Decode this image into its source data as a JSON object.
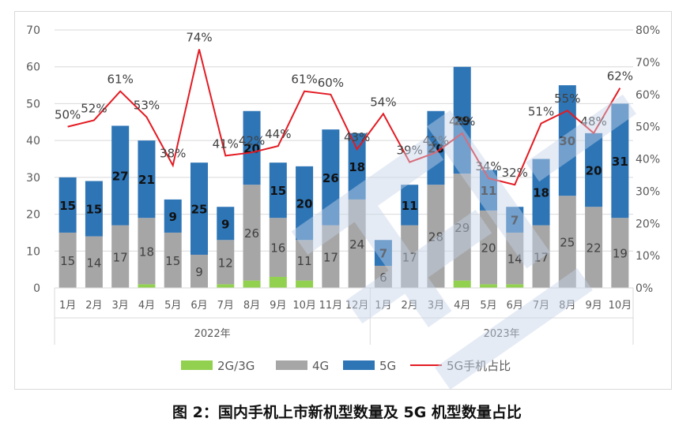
{
  "caption": "图 2：国内手机上市新机型数量及 5G 机型数量占比",
  "colors": {
    "g23": "#92d050",
    "g4": "#a6a6a6",
    "g5": "#2e75b6",
    "ratio": "#e31b23",
    "grid": "#d9d9d9",
    "axis_text": "#595959",
    "watermark": "#c7d5ea"
  },
  "chart_data": {
    "type": "bar",
    "stacked": true,
    "grid": true,
    "legend_position": "bottom",
    "categories": [
      "1月",
      "2月",
      "3月",
      "4月",
      "5月",
      "6月",
      "7月",
      "8月",
      "9月",
      "10月",
      "11月",
      "12月",
      "1月",
      "2月",
      "3月",
      "4月",
      "5月",
      "6月",
      "7月",
      "8月",
      "9月",
      "10月"
    ],
    "year_groups": [
      {
        "label": "2022年",
        "count": 12
      },
      {
        "label": "2023年",
        "count": 10
      }
    ],
    "ylim": [
      0,
      70
    ],
    "yticks": [
      0,
      10,
      20,
      30,
      40,
      50,
      60,
      70
    ],
    "y2lim": [
      0,
      80
    ],
    "y2ticks": [
      "0%",
      "10%",
      "20%",
      "30%",
      "40%",
      "50%",
      "60%",
      "70%",
      "80%"
    ],
    "series": [
      {
        "name": "2G/3G",
        "key": "g23",
        "values": [
          0,
          0,
          0,
          1,
          0,
          0,
          1,
          2,
          3,
          2,
          0,
          0,
          0,
          0,
          0,
          2,
          1,
          1,
          0,
          0,
          0,
          0
        ]
      },
      {
        "name": "4G",
        "key": "g4",
        "values": [
          15,
          14,
          17,
          18,
          15,
          9,
          12,
          26,
          16,
          11,
          17,
          24,
          6,
          17,
          28,
          29,
          20,
          14,
          17,
          25,
          22,
          19
        ]
      },
      {
        "name": "5G",
        "key": "g5",
        "values": [
          15,
          15,
          27,
          21,
          9,
          25,
          9,
          20,
          15,
          20,
          26,
          18,
          7,
          11,
          20,
          29,
          11,
          7,
          18,
          30,
          20,
          31
        ]
      },
      {
        "name": "5G手机占比",
        "key": "ratio",
        "axis": "secondary",
        "type": "line",
        "values": [
          50,
          52,
          61,
          53,
          38,
          74,
          41,
          42,
          44,
          61,
          60,
          43,
          54,
          39,
          42,
          48,
          34,
          32,
          51,
          55,
          48,
          62
        ],
        "labels": [
          "50%",
          "52%",
          "61%",
          "53%",
          "38%",
          "74%",
          "41%",
          "42%",
          "44%",
          "61%",
          "60%",
          "43%",
          "54%",
          "39%",
          "42%",
          "48%",
          "34%",
          "32%",
          "51%",
          "55%",
          "48%",
          "62%"
        ]
      }
    ]
  }
}
